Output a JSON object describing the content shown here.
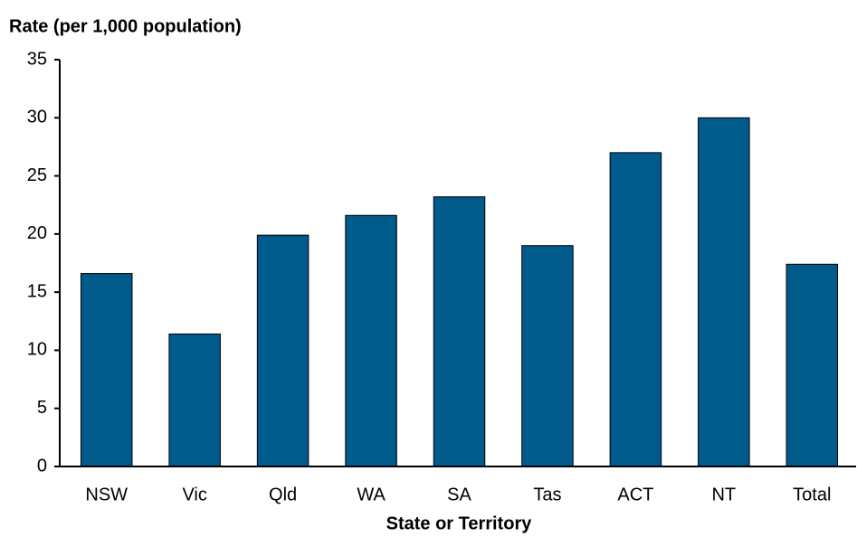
{
  "chart_data": {
    "type": "bar",
    "y_label": "Rate (per 1,000 population)",
    "x_label": "State or Territory",
    "categories": [
      "NSW",
      "Vic",
      "Qld",
      "WA",
      "SA",
      "Tas",
      "ACT",
      "NT",
      "Total"
    ],
    "values": [
      16.6,
      11.4,
      19.9,
      21.6,
      23.2,
      19.0,
      27.0,
      30.0,
      17.4
    ],
    "color": "#005a8c",
    "ylim": [
      0,
      35
    ],
    "yticks": [
      0,
      5,
      10,
      15,
      20,
      25,
      30,
      35
    ],
    "grid": false
  }
}
